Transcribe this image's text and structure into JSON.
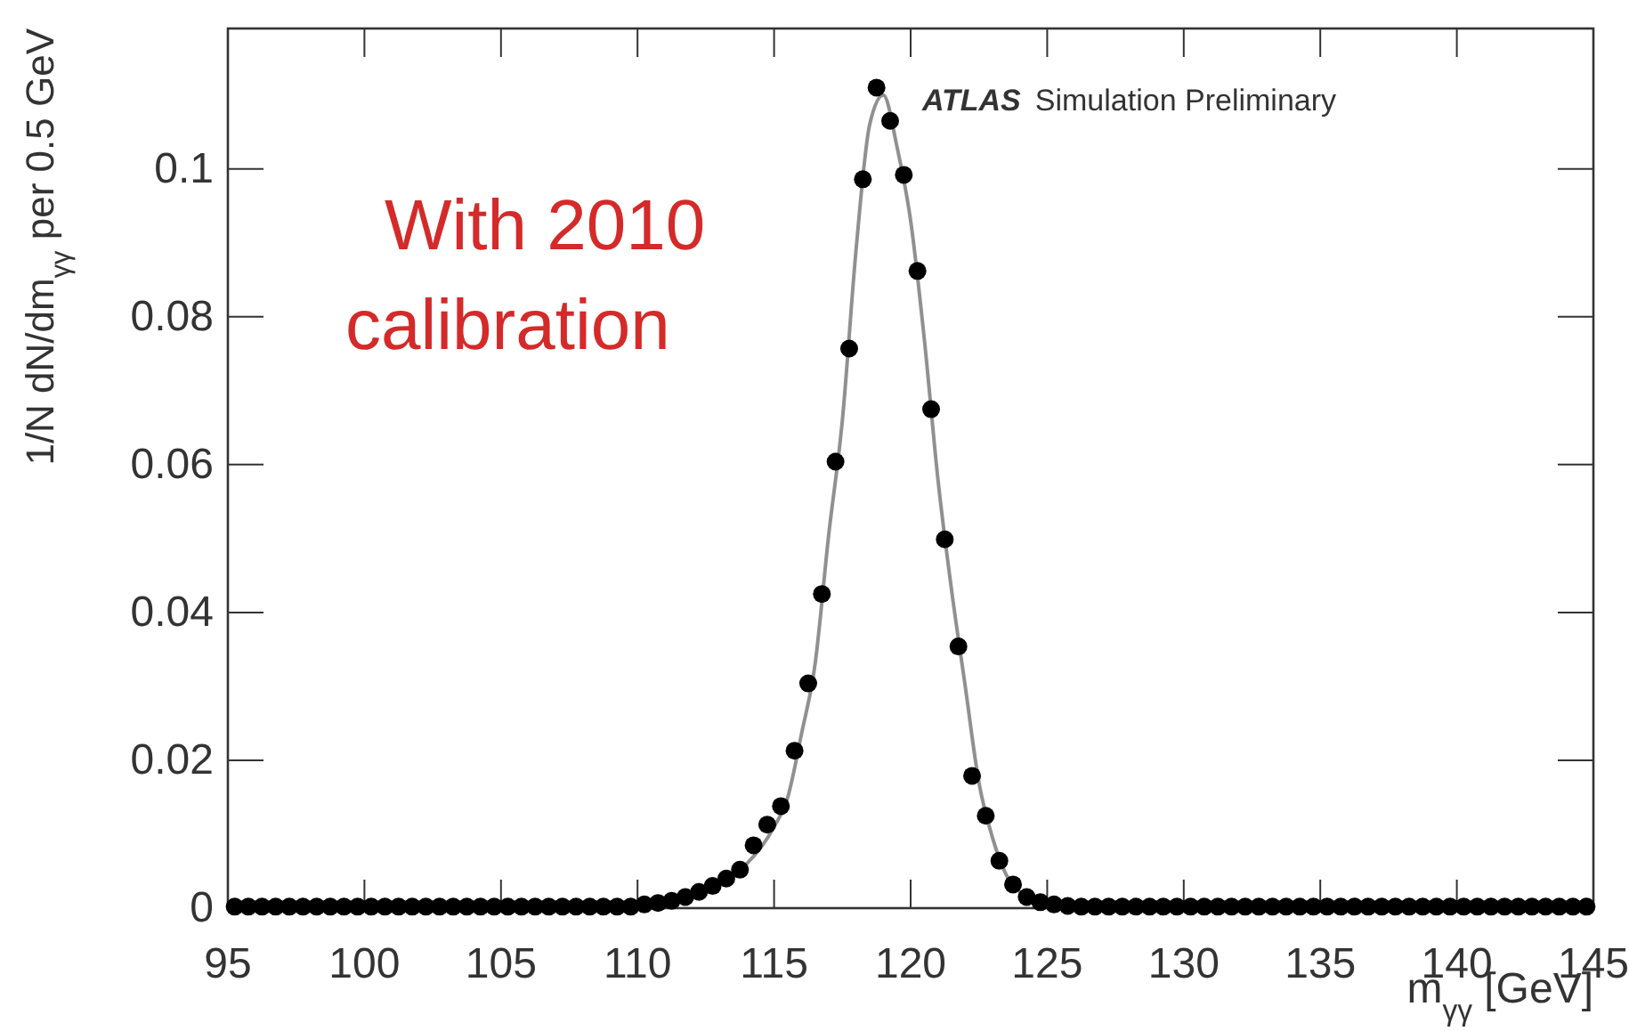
{
  "chart_data": {
    "type": "scatter",
    "xlabel": "m$_{γγ}$ [GeV]",
    "ylabel": "1/N dN/dm$_{γγ}$ per 0.5 GeV",
    "annotations": [
      "With 2010",
      "calibration",
      "ATLAS",
      "Simulation Preliminary"
    ],
    "xlim": [
      95,
      145
    ],
    "ylim": [
      0,
      0.119
    ],
    "xticks": [
      95,
      100,
      105,
      110,
      115,
      120,
      125,
      130,
      135,
      140,
      145
    ],
    "yticks": [
      0,
      0.02,
      0.04,
      0.06,
      0.08,
      0.1
    ],
    "grid": false,
    "marker": "circle",
    "series": [
      {
        "type": "line",
        "color": "#909090",
        "line_style": "solid",
        "marker": "none",
        "x": [
          95,
          108,
          110,
          111,
          112,
          113,
          114,
          115,
          115.5,
          116,
          116.5,
          117,
          117.5,
          118,
          118.5,
          119,
          119.5,
          120,
          120.5,
          121,
          121.5,
          122,
          122.5,
          123,
          123.5,
          124,
          125,
          126,
          130,
          145
        ],
        "values": [
          0.0002,
          0.0003,
          0.0005,
          0.001,
          0.002,
          0.0035,
          0.006,
          0.011,
          0.015,
          0.0235,
          0.033,
          0.0505,
          0.066,
          0.089,
          0.106,
          0.11,
          0.103,
          0.093,
          0.077,
          0.058,
          0.043,
          0.03,
          0.017,
          0.0095,
          0.0045,
          0.0022,
          0.0006,
          0.0003,
          0.0002,
          0.0002
        ]
      },
      {
        "color": "#000000",
        "x": [
          95.25,
          95.75,
          96.25,
          96.75,
          97.25,
          97.75,
          98.25,
          98.75,
          99.25,
          99.75,
          100.25,
          100.75,
          101.25,
          101.75,
          102.25,
          102.75,
          103.25,
          103.75,
          104.25,
          104.75,
          105.25,
          105.75,
          106.25,
          106.75,
          107.25,
          107.75,
          108.25,
          108.75,
          109.25,
          109.75,
          110.25,
          110.75,
          111.25,
          111.75,
          112.25,
          112.75,
          113.25,
          113.75,
          114.25,
          114.75,
          115.25,
          115.75,
          116.25,
          116.75,
          117.25,
          117.75,
          118.25,
          118.75,
          119.25,
          119.75,
          120.25,
          120.75,
          121.25,
          121.75,
          122.25,
          122.75,
          123.25,
          123.75,
          124.25,
          124.75,
          125.25,
          125.75,
          126.25,
          126.75,
          127.25,
          127.75,
          128.25,
          128.75,
          129.25,
          129.75,
          130.25,
          130.75,
          131.25,
          131.75,
          132.25,
          132.75,
          133.25,
          133.75,
          134.25,
          134.75,
          135.25,
          135.75,
          136.25,
          136.75,
          137.25,
          137.75,
          138.25,
          138.75,
          139.25,
          139.75,
          140.25,
          140.75,
          141.25,
          141.75,
          142.25,
          142.75,
          143.25,
          143.75,
          144.25,
          144.75
        ],
        "values": [
          0.0002,
          0.0002,
          0.0002,
          0.0002,
          0.0002,
          0.0002,
          0.0002,
          0.0002,
          0.0002,
          0.0002,
          0.0002,
          0.0002,
          0.0002,
          0.0002,
          0.0002,
          0.0002,
          0.0002,
          0.0002,
          0.0002,
          0.0002,
          0.0002,
          0.0002,
          0.0002,
          0.0002,
          0.0002,
          0.0002,
          0.0002,
          0.0002,
          0.0002,
          0.0002,
          0.0005,
          0.0007,
          0.001,
          0.0015,
          0.0022,
          0.003,
          0.004,
          0.0052,
          0.0085,
          0.0113,
          0.0138,
          0.0213,
          0.0304,
          0.0425,
          0.0604,
          0.0757,
          0.0986,
          0.111,
          0.1065,
          0.0992,
          0.0862,
          0.0675,
          0.0499,
          0.0354,
          0.0179,
          0.0125,
          0.0064,
          0.0032,
          0.0015,
          0.0008,
          0.0005,
          0.0003,
          0.0002,
          0.0002,
          0.0002,
          0.0002,
          0.0002,
          0.0002,
          0.0002,
          0.0002,
          0.0002,
          0.0002,
          0.0002,
          0.0002,
          0.0002,
          0.0002,
          0.0002,
          0.0002,
          0.0002,
          0.0002,
          0.0002,
          0.0002,
          0.0002,
          0.0002,
          0.0002,
          0.0002,
          0.0002,
          0.0002,
          0.0002,
          0.0002,
          0.0002,
          0.0002,
          0.0002,
          0.0002,
          0.0002,
          0.0002,
          0.0002,
          0.0002,
          0.0002,
          0.0002
        ]
      }
    ]
  }
}
